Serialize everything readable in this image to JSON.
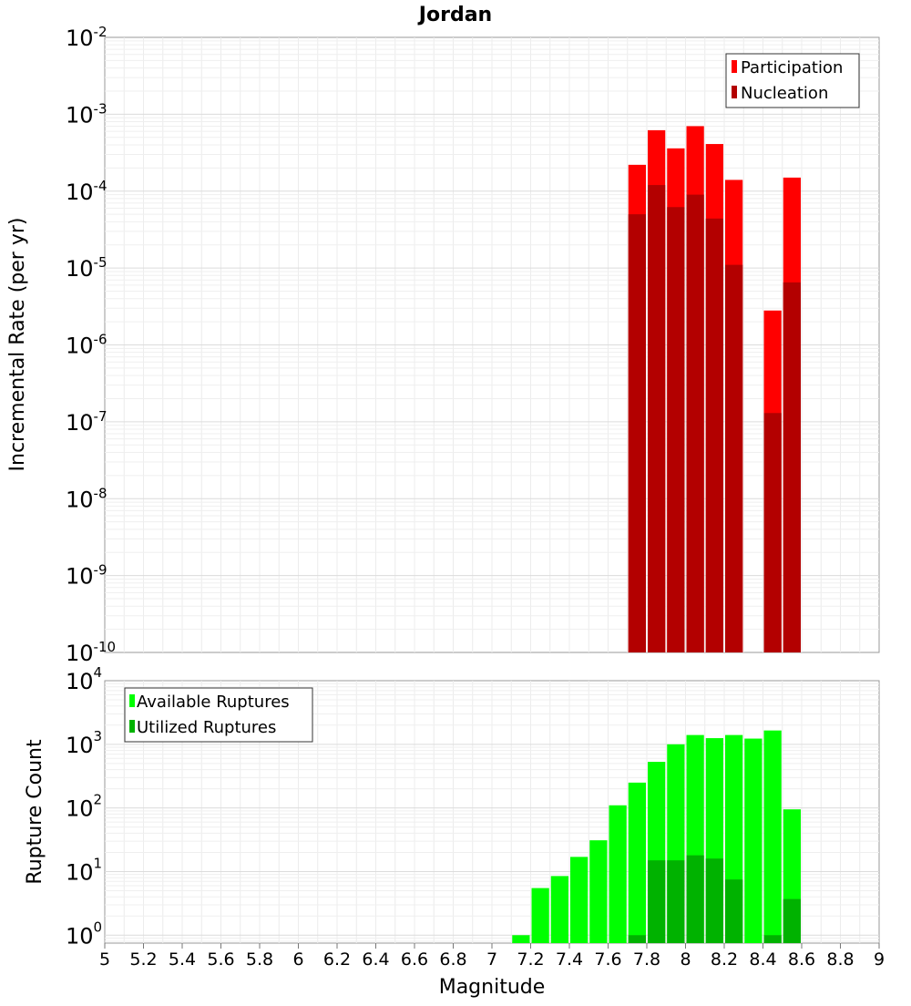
{
  "chart_data": [
    {
      "type": "bar",
      "title": "Jordan",
      "xlabel": "Magnitude",
      "ylabel": "Incremental Rate (per yr)",
      "yscale": "log",
      "ylim": [
        1e-10,
        0.01
      ],
      "xlim": [
        5,
        9
      ],
      "bin_width": 0.1,
      "grid": true,
      "legend_position": "top-right",
      "y_decades": [
        -10,
        -9,
        -8,
        -7,
        -6,
        -5,
        -4,
        -3,
        -2
      ],
      "series": [
        {
          "name": "Participation",
          "color": "#ff0000",
          "points": [
            {
              "x": 7.75,
              "y": 0.00022
            },
            {
              "x": 7.85,
              "y": 0.00062
            },
            {
              "x": 7.95,
              "y": 0.00036
            },
            {
              "x": 8.05,
              "y": 0.0007
            },
            {
              "x": 8.15,
              "y": 0.00041
            },
            {
              "x": 8.25,
              "y": 0.00014
            },
            {
              "x": 8.45,
              "y": 2.8e-06
            },
            {
              "x": 8.55,
              "y": 0.00015
            }
          ]
        },
        {
          "name": "Nucleation",
          "color": "#b30000",
          "points": [
            {
              "x": 7.75,
              "y": 5e-05
            },
            {
              "x": 7.85,
              "y": 0.00012
            },
            {
              "x": 7.95,
              "y": 6.2e-05
            },
            {
              "x": 8.05,
              "y": 9e-05
            },
            {
              "x": 8.15,
              "y": 4.4e-05
            },
            {
              "x": 8.25,
              "y": 1.1e-05
            },
            {
              "x": 8.45,
              "y": 1.3e-07
            },
            {
              "x": 8.55,
              "y": 6.5e-06
            }
          ]
        }
      ]
    },
    {
      "type": "bar",
      "xlabel": "Magnitude",
      "ylabel": "Rupture Count",
      "yscale": "log",
      "ylim": [
        0.75,
        10000
      ],
      "xlim": [
        5,
        9
      ],
      "bin_width": 0.1,
      "grid": true,
      "legend_position": "top-left",
      "y_decades": [
        0,
        1,
        2,
        3,
        4
      ],
      "x_ticks": [
        "5",
        "5.2",
        "5.4",
        "5.6",
        "5.8",
        "6",
        "6.2",
        "6.4",
        "6.6",
        "6.8",
        "7",
        "7.2",
        "7.4",
        "7.6",
        "7.8",
        "8",
        "8.2",
        "8.4",
        "8.6",
        "8.8",
        "9"
      ],
      "series": [
        {
          "name": "Available Ruptures",
          "color": "#00ff00",
          "points": [
            {
              "x": 7.15,
              "y": 1
            },
            {
              "x": 7.25,
              "y": 5.5
            },
            {
              "x": 7.35,
              "y": 8.5
            },
            {
              "x": 7.45,
              "y": 17
            },
            {
              "x": 7.55,
              "y": 31
            },
            {
              "x": 7.65,
              "y": 110
            },
            {
              "x": 7.75,
              "y": 250
            },
            {
              "x": 7.85,
              "y": 530
            },
            {
              "x": 7.95,
              "y": 1000
            },
            {
              "x": 8.05,
              "y": 1400
            },
            {
              "x": 8.15,
              "y": 1250
            },
            {
              "x": 8.25,
              "y": 1400
            },
            {
              "x": 8.35,
              "y": 1230
            },
            {
              "x": 8.45,
              "y": 1650
            },
            {
              "x": 8.55,
              "y": 95
            }
          ]
        },
        {
          "name": "Utilized Ruptures",
          "color": "#00b200",
          "points": [
            {
              "x": 7.75,
              "y": 1
            },
            {
              "x": 7.85,
              "y": 15
            },
            {
              "x": 7.95,
              "y": 15
            },
            {
              "x": 8.05,
              "y": 18
            },
            {
              "x": 8.15,
              "y": 16
            },
            {
              "x": 8.25,
              "y": 7.5
            },
            {
              "x": 8.45,
              "y": 1
            },
            {
              "x": 8.55,
              "y": 3.7
            }
          ]
        }
      ]
    }
  ]
}
